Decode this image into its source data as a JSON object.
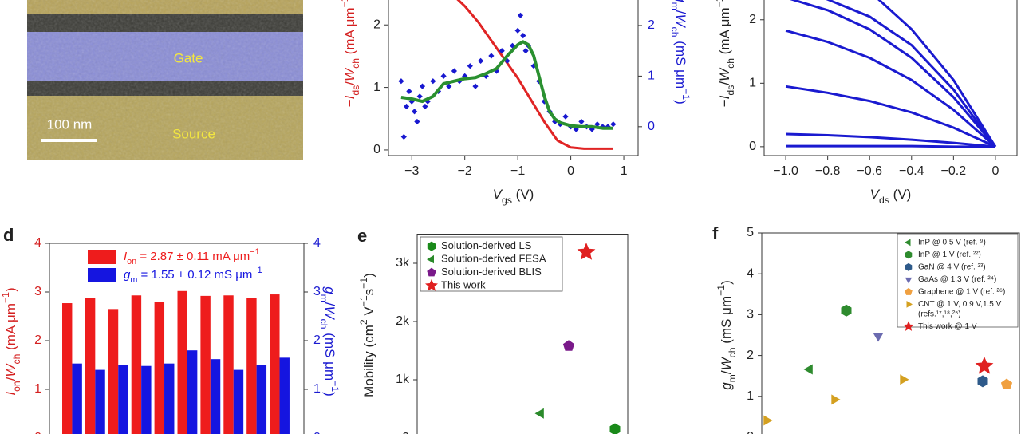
{
  "image": {
    "labels": {
      "gate": "Gate",
      "source": "Source"
    },
    "scale_bar": "100 nm"
  },
  "chart_data": [
    {
      "type": "line",
      "xlabel": [
        {
          "text": "V",
          "style": "i"
        },
        {
          "text": "gs",
          "style": "sub"
        },
        " (V)"
      ],
      "ylabel": [
        "−",
        {
          "text": "I",
          "style": "i"
        },
        {
          "text": "ds",
          "style": "sub"
        },
        "/",
        {
          "text": "W",
          "style": "i"
        },
        {
          "text": "ch",
          "style": "sub"
        },
        " (mA μm",
        {
          "text": "−1",
          "style": "sup"
        },
        ")"
      ],
      "y2label": [
        {
          "text": "g",
          "style": "i"
        },
        {
          "text": "m",
          "style": "sub"
        },
        "/",
        {
          "text": "W",
          "style": "i"
        },
        {
          "text": "ch",
          "style": "sub"
        },
        " (mS μm",
        {
          "text": "−1",
          "style": "sup"
        },
        ")"
      ],
      "xlim": [
        -3.44,
        1.27
      ],
      "xticks": [
        {
          "value": -3,
          "label": "−3"
        },
        {
          "value": -2,
          "label": "−2"
        },
        {
          "value": -1,
          "label": "−1"
        },
        0,
        1
      ],
      "ylim": [
        -0.09,
        2.59
      ],
      "yticks": [
        0,
        1,
        2
      ],
      "y2lim": [
        -0.57,
        2.74
      ],
      "y2ticks": [
        0,
        1,
        2
      ],
      "series": [
        {
          "color": "#e02424",
          "x": [
            -2.25,
            -2,
            -1.75,
            -1.5,
            -1.25,
            -1,
            -0.75,
            -0.5,
            -0.25,
            0,
            0.25,
            0.5,
            0.8
          ],
          "values": [
            2.5,
            2.3,
            2.05,
            1.75,
            1.45,
            1.15,
            0.8,
            0.45,
            0.15,
            0.04,
            0.02,
            0.02,
            0.02
          ]
        },
        {
          "color": "#1818d0",
          "marker": "diamond",
          "axis": "y2",
          "x": [
            -3.2,
            -3.15,
            -3.1,
            -3.05,
            -3.0,
            -2.95,
            -2.9,
            -2.85,
            -2.8,
            -2.75,
            -2.7,
            -2.6,
            -2.5,
            -2.4,
            -2.3,
            -2.2,
            -2.1,
            -2.0,
            -1.9,
            -1.8,
            -1.7,
            -1.6,
            -1.5,
            -1.4,
            -1.3,
            -1.2,
            -1.1,
            -1.0,
            -0.95,
            -0.9,
            -0.85,
            -0.8,
            -0.7,
            -0.6,
            -0.5,
            -0.4,
            -0.3,
            -0.2,
            -0.1,
            0,
            0.1,
            0.2,
            0.3,
            0.4,
            0.5,
            0.6,
            0.7,
            0.8
          ],
          "values": [
            0.9,
            -0.2,
            0.4,
            0.7,
            0.5,
            0.3,
            0.1,
            0.6,
            0.8,
            0.4,
            0.5,
            0.9,
            0.7,
            1.0,
            0.8,
            1.1,
            0.9,
            1.0,
            1.2,
            0.8,
            1.3,
            1.0,
            1.4,
            1.1,
            1.5,
            1.3,
            1.6,
            1.9,
            2.2,
            1.8,
            1.5,
            1.6,
            1.2,
            0.9,
            0.5,
            0.3,
            0.1,
            0.05,
            0.2,
            0.0,
            -0.05,
            0.1,
            0.0,
            -0.05,
            0.05,
            0.0,
            0.0,
            0.05
          ]
        },
        {
          "color": "#2a9030",
          "axis": "y2",
          "x": [
            -3.2,
            -3,
            -2.8,
            -2.6,
            -2.4,
            -2.2,
            -2,
            -1.8,
            -1.6,
            -1.4,
            -1.2,
            -1.0,
            -0.9,
            -0.8,
            -0.7,
            -0.6,
            -0.5,
            -0.4,
            -0.3,
            -0.2,
            -0.1,
            0,
            0.2,
            0.4,
            0.6,
            0.8
          ],
          "values": [
            0.58,
            0.55,
            0.5,
            0.6,
            0.85,
            0.9,
            0.95,
            0.97,
            1.05,
            1.15,
            1.4,
            1.62,
            1.68,
            1.62,
            1.4,
            1.0,
            0.6,
            0.3,
            0.15,
            0.08,
            0.05,
            0.02,
            0.0,
            0.0,
            -0.03,
            -0.03
          ]
        }
      ]
    },
    {
      "type": "line",
      "xlabel": [
        {
          "text": "V",
          "style": "i"
        },
        {
          "text": "ds",
          "style": "sub"
        },
        " (V)"
      ],
      "ylabel": [
        "−",
        {
          "text": "I",
          "style": "i"
        },
        {
          "text": "ds",
          "style": "sub"
        },
        "/",
        {
          "text": "W",
          "style": "i"
        },
        {
          "text": "ch",
          "style": "sub"
        },
        " (mA μm",
        {
          "text": "−1",
          "style": "sup"
        },
        ")"
      ],
      "xlim": [
        -1.103,
        0.103
      ],
      "xticks": [
        {
          "value": -1,
          "label": "−1.0"
        },
        {
          "value": -0.8,
          "label": "−0.8"
        },
        {
          "value": -0.6,
          "label": "−0.6"
        },
        {
          "value": -0.4,
          "label": "−0.4"
        },
        {
          "value": -0.2,
          "label": "−0.2"
        },
        0
      ],
      "ylim": [
        -0.14,
        2.5
      ],
      "yticks": [
        0,
        1,
        2
      ],
      "x": [
        -1,
        -0.8,
        -0.6,
        -0.4,
        -0.2,
        0
      ],
      "series": [
        {
          "color": "#1a1ad0",
          "values": [
            0.01,
            0.01,
            0.01,
            0.01,
            0.0,
            0
          ]
        },
        {
          "color": "#1a1ad0",
          "values": [
            0.2,
            0.18,
            0.15,
            0.11,
            0.06,
            0
          ]
        },
        {
          "color": "#1a1ad0",
          "values": [
            0.95,
            0.85,
            0.72,
            0.54,
            0.3,
            0
          ]
        },
        {
          "color": "#1a1ad0",
          "values": [
            1.83,
            1.65,
            1.4,
            1.05,
            0.58,
            0
          ]
        },
        {
          "color": "#1a1ad0",
          "values": [
            2.35,
            2.15,
            1.85,
            1.4,
            0.78,
            0
          ]
        },
        {
          "color": "#1a1ad0",
          "values": [
            2.6,
            2.32,
            2.05,
            1.6,
            0.9,
            0
          ]
        },
        {
          "color": "#1a1ad0",
          "values": [
            3.0,
            2.85,
            2.45,
            1.85,
            1.05,
            0
          ]
        }
      ]
    },
    {
      "type": "bar",
      "panel_label": "d",
      "ylabel": [
        {
          "text": "I",
          "style": "i"
        },
        {
          "text": "on",
          "style": "sub"
        },
        "/",
        {
          "text": "W",
          "style": "i"
        },
        {
          "text": "ch",
          "style": "sub"
        },
        " (mA μm",
        {
          "text": "−1",
          "style": "sup"
        },
        ")"
      ],
      "y2label": [
        {
          "text": "g",
          "style": "i"
        },
        {
          "text": "m",
          "style": "sub"
        },
        "/",
        {
          "text": "W",
          "style": "i"
        },
        {
          "text": "ch",
          "style": "sub"
        },
        " (mS μm",
        {
          "text": "−1",
          "style": "sup"
        },
        ")"
      ],
      "categories": [
        null,
        null,
        null,
        null,
        null,
        null,
        null,
        null,
        null,
        null
      ],
      "ylim": [
        0,
        4
      ],
      "yticks": [
        0,
        1,
        2,
        3,
        4
      ],
      "y2lim": [
        0,
        4
      ],
      "y2ticks": [
        0,
        1,
        2,
        3,
        4
      ],
      "series": [
        {
          "name": [
            {
              "text": "I",
              "style": "i"
            },
            {
              "text": "on",
              "style": "sub"
            },
            " = 2.87 ± 0.11 mA μm",
            {
              "text": "−1",
              "style": "sup"
            }
          ],
          "color": "#ee1c1c",
          "values": [
            2.77,
            2.87,
            2.65,
            2.93,
            2.8,
            3.02,
            2.92,
            2.93,
            2.88,
            2.95
          ]
        },
        {
          "name": [
            {
              "text": "g",
              "style": "i"
            },
            {
              "text": "m",
              "style": "sub"
            },
            " = 1.55 ± 0.12 mS μm",
            {
              "text": "−1",
              "style": "sup"
            }
          ],
          "color": "#1515e0",
          "axis": "y2",
          "values": [
            1.53,
            1.4,
            1.5,
            1.48,
            1.53,
            1.8,
            1.62,
            1.4,
            1.5,
            1.65
          ]
        }
      ]
    },
    {
      "type": "scatter",
      "panel_label": "e",
      "ylabel": [
        "Mobility (cm",
        {
          "text": "2",
          "style": "sup"
        },
        " V",
        {
          "text": "−1",
          "style": "sup"
        },
        "s",
        {
          "text": "−1",
          "style": "sup"
        },
        ")"
      ],
      "ylim": [
        0,
        3500
      ],
      "yticks": [
        0,
        {
          "value": 1000,
          "label": "1k"
        },
        {
          "value": 2000,
          "label": "2k"
        },
        {
          "value": 3000,
          "label": "3k"
        }
      ],
      "series": [
        {
          "name": "Solution-derived LS",
          "color": "#1a8a1a",
          "marker": "hexagon",
          "values": [
            150
          ]
        },
        {
          "name": "Solution-derived FESA",
          "color": "#2a8a2a",
          "marker": "triangle-left",
          "values": [
            420
          ]
        },
        {
          "name": "Solution-derived BLIS",
          "color": "#7a1a8a",
          "marker": "pentagon",
          "values": [
            1580
          ]
        },
        {
          "name": "This work",
          "color": "#e02020",
          "marker": "star",
          "values": [
            3190
          ]
        }
      ]
    },
    {
      "type": "scatter",
      "panel_label": "f",
      "ylabel": [
        {
          "text": "g",
          "style": "i"
        },
        {
          "text": "m",
          "style": "sub"
        },
        "/",
        {
          "text": "W",
          "style": "i"
        },
        {
          "text": "ch",
          "style": "sub"
        },
        " (mS μm",
        {
          "text": "−1",
          "style": "sup"
        },
        ")"
      ],
      "ylim": [
        0,
        5
      ],
      "yticks": [
        0,
        1,
        2,
        3,
        4,
        5
      ],
      "series": [
        {
          "name": "InP @ 0.5 V (ref. ⁹)",
          "color": "#2e8b2e",
          "marker": "triangle-left",
          "values": [
            1.66
          ]
        },
        {
          "name": "InP @ 1 V (ref. ²²)",
          "color": "#2e8b2e",
          "marker": "hexagon",
          "values": [
            3.1
          ]
        },
        {
          "name": "GaN @ 4 V (ref. ²³)",
          "color": "#2e5a8a",
          "marker": "hexagon",
          "values": [
            1.37
          ]
        },
        {
          "name": "GaAs @ 1.3 V (ref. ²⁴)",
          "color": "#6b6bb0",
          "marker": "triangle-down",
          "values": [
            2.48
          ]
        },
        {
          "name": "Graphene @ 1 V (ref. ²⁶)",
          "color": "#f0a040",
          "marker": "pentagon",
          "values": [
            1.29
          ]
        },
        {
          "name": [
            "CNT @ 1 V, 0.9 V,1.5 V",
            "(refs.¹⁷,¹⁸,²⁵)"
          ],
          "color": "#d4a020",
          "marker": "triangle-right",
          "values": [
            0.41,
            0.92,
            1.41
          ]
        },
        {
          "name": "This work @ 1 V",
          "color": "#e02020",
          "marker": "star",
          "values": [
            1.74
          ]
        }
      ]
    }
  ]
}
